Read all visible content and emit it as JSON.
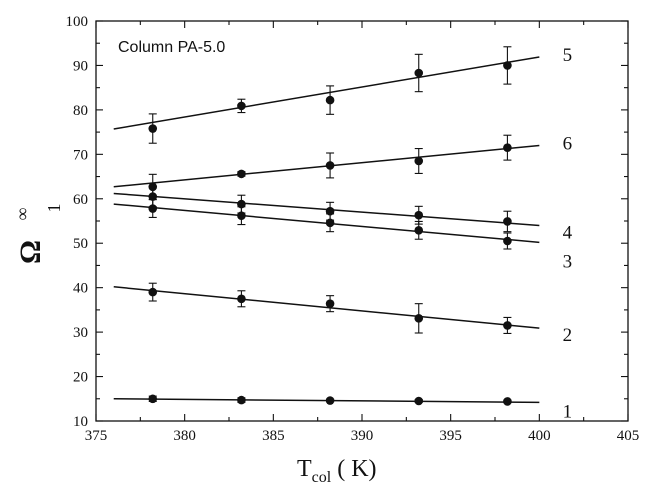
{
  "chart_data": {
    "type": "scatter",
    "annotation": "Column PA-5.0",
    "xlabel": {
      "main": "T",
      "sub": "col",
      "rest": " ( K)"
    },
    "ylabel": {
      "main": "Ω",
      "sub": "1",
      "sup": "∞"
    },
    "xlim": [
      375,
      405
    ],
    "ylim": [
      10,
      100
    ],
    "xticks": [
      375,
      380,
      385,
      390,
      395,
      400,
      405
    ],
    "yticks": [
      10,
      20,
      30,
      40,
      50,
      60,
      70,
      80,
      90,
      100
    ],
    "series": [
      {
        "label": "5",
        "x": [
          378.2,
          383.2,
          388.2,
          393.2,
          398.2
        ],
        "y": [
          75.8,
          80.9,
          82.2,
          88.3,
          90.0
        ],
        "err": [
          3.3,
          1.5,
          3.2,
          4.2,
          4.2
        ],
        "fit": {
          "x": [
            376,
            400
          ],
          "y": [
            75.7,
            91.9
          ]
        }
      },
      {
        "label": "6",
        "x": [
          378.2,
          383.2,
          388.2,
          393.2,
          398.2
        ],
        "y": [
          62.7,
          65.6,
          67.5,
          68.5,
          71.5
        ],
        "err": [
          2.8,
          0.5,
          2.8,
          2.8,
          2.8
        ],
        "fit": {
          "x": [
            376,
            400
          ],
          "y": [
            62.7,
            72.0
          ]
        }
      },
      {
        "label": "4",
        "x": [
          378.2,
          383.2,
          388.2,
          393.2,
          398.2
        ],
        "y": [
          60.5,
          58.8,
          57.2,
          56.3,
          54.9
        ],
        "err": [
          2.3,
          2.0,
          2.0,
          2.0,
          2.3
        ],
        "fit": {
          "x": [
            376,
            400
          ],
          "y": [
            61.2,
            54.0
          ]
        }
      },
      {
        "label": "3",
        "x": [
          378.2,
          383.2,
          388.2,
          393.2,
          398.2
        ],
        "y": [
          57.8,
          56.2,
          54.6,
          52.9,
          50.5
        ],
        "err": [
          2.0,
          2.0,
          2.0,
          2.0,
          1.8
        ],
        "fit": {
          "x": [
            376,
            400
          ],
          "y": [
            58.8,
            50.2
          ]
        }
      },
      {
        "label": "2",
        "x": [
          378.2,
          383.2,
          388.2,
          393.2,
          398.2
        ],
        "y": [
          39.0,
          37.5,
          36.4,
          33.1,
          31.5
        ],
        "err": [
          2.0,
          1.8,
          1.8,
          3.3,
          1.8
        ],
        "fit": {
          "x": [
            376,
            400
          ],
          "y": [
            40.2,
            30.9
          ]
        }
      },
      {
        "label": "1",
        "x": [
          378.2,
          383.2,
          388.2,
          393.2,
          398.2
        ],
        "y": [
          15.0,
          14.7,
          14.6,
          14.5,
          14.4
        ],
        "err": [
          0.6,
          0.5,
          0.3,
          0.3,
          0.3
        ],
        "fit": {
          "x": [
            376,
            400
          ],
          "y": [
            15.0,
            14.2
          ]
        }
      }
    ]
  }
}
